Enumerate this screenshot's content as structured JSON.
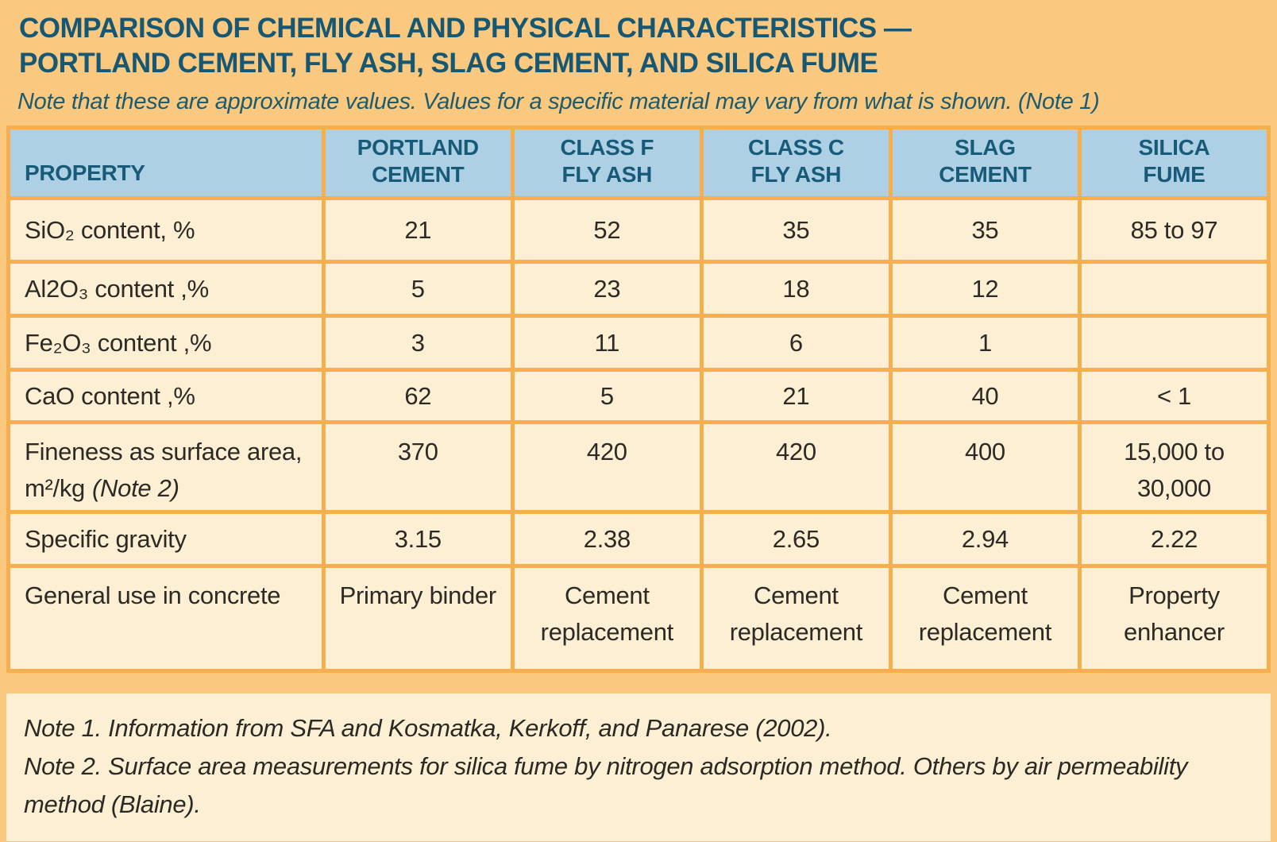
{
  "page": {
    "title_line1": "COMPARISON OF CHEMICAL AND PHYSICAL CHARACTERISTICS —",
    "title_line2": "PORTLAND CEMENT, FLY ASH, SLAG CEMENT, AND SILICA FUME",
    "subtitle": "Note that these are approximate values. Values for a specific material may vary from what is shown. (Note 1)"
  },
  "colors": {
    "page_background": "#FAC87E",
    "table_border": "#F6AE4F",
    "cell_background": "#FCEFD3",
    "header_background": "#AED0E4",
    "heading_ink": "#165873",
    "body_ink": "#2D2A25"
  },
  "table": {
    "headers": [
      {
        "lines": [
          "PROPERTY"
        ]
      },
      {
        "lines": [
          "PORTLAND",
          "CEMENT"
        ]
      },
      {
        "lines": [
          "CLASS F",
          "FLY ASH"
        ]
      },
      {
        "lines": [
          "CLASS C",
          "FLY ASH"
        ]
      },
      {
        "lines": [
          "SLAG",
          "CEMENT"
        ]
      },
      {
        "lines": [
          "SILICA",
          "FUME"
        ]
      }
    ],
    "rows": [
      {
        "property": "SiO₂ content, %",
        "note": "",
        "values": [
          "21",
          "52",
          "35",
          "35",
          "85 to 97"
        ]
      },
      {
        "property": "Al2O₃ content ,%",
        "note": "",
        "values": [
          "5",
          "23",
          "18",
          "12",
          ""
        ]
      },
      {
        "property": "Fe₂O₃ content ,%",
        "note": "",
        "values": [
          "3",
          "11",
          "6",
          "1",
          ""
        ]
      },
      {
        "property": "CaO content ,%",
        "note": "",
        "values": [
          "62",
          "5",
          "21",
          "40",
          "< 1"
        ]
      },
      {
        "property": "Fineness as surface area, m²/kg",
        "note": "(Note 2)",
        "values": [
          "370",
          "420",
          "420",
          "400",
          "15,000 to 30,000"
        ]
      },
      {
        "property": "Specific gravity",
        "note": "",
        "values": [
          "3.15",
          "2.38",
          "2.65",
          "2.94",
          "2.22"
        ]
      },
      {
        "property": "General use in concrete",
        "note": "",
        "values": [
          "Primary binder",
          "Cement replacement",
          "Cement replacement",
          "Cement replacement",
          "Property enhancer"
        ]
      }
    ]
  },
  "notes": [
    "Note 1. Information from SFA and Kosmatka, Kerkoff, and Panarese (2002).",
    "Note 2. Surface area measurements for silica fume by nitrogen adsorption method. Others by air permeability method (Blaine)."
  ]
}
